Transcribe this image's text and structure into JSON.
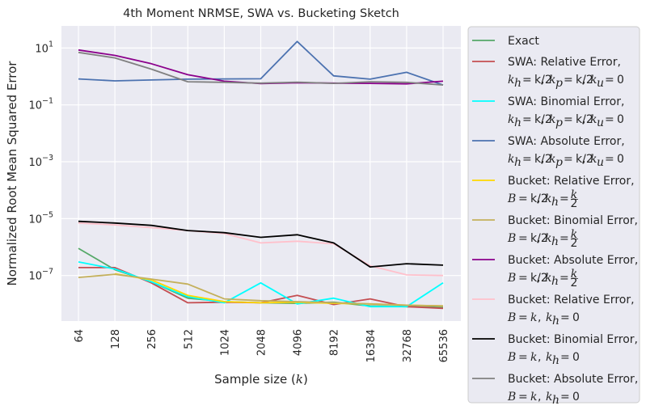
{
  "chart_data": {
    "type": "line",
    "title": "4th Moment NRMSE, SWA vs. Bucketing Sketch",
    "xlabel": "Sample size ($k$)",
    "xlabel_display": {
      "prefix": "Sample size (",
      "var": "k",
      "suffix": ")"
    },
    "ylabel": "Normalized Root Mean Squared Error",
    "y_scale": "log",
    "ylim": [
      2.5e-09,
      60
    ],
    "y_ticks": [
      {
        "value": 1e-07,
        "base": "10",
        "exp": "−7"
      },
      {
        "value": 1e-05,
        "base": "10",
        "exp": "−5"
      },
      {
        "value": 0.001,
        "base": "10",
        "exp": "−3"
      },
      {
        "value": 0.1,
        "base": "10",
        "exp": "−1"
      },
      {
        "value": 10,
        "base": "10",
        "exp": "1"
      }
    ],
    "categories": [
      "64",
      "128",
      "256",
      "512",
      "1024",
      "2048",
      "4096",
      "8192",
      "16384",
      "32768",
      "65536"
    ],
    "grid": true,
    "legend_position": "outside-right",
    "series": [
      {
        "name": "Exact",
        "label_lines": [
          "Exact"
        ],
        "color": "#55a868",
        "values": [
          9e-07,
          1.6e-07,
          6e-08,
          1.6e-08,
          1.2e-08,
          1.1e-08,
          1.05e-08,
          1.15e-08,
          8.5e-09,
          8e-09,
          7.5e-09
        ]
      },
      {
        "name": "SWA: Relative Error, k_h=k/2, k_p=k/2, k_u=0",
        "label_lines": [
          "SWA: Relative Error,",
          "k_h = k/2, k_p = k/2, k_u = 0"
        ],
        "color": "#c44e52",
        "values": [
          1.9e-07,
          1.9e-07,
          5.5e-08,
          1.1e-08,
          1.15e-08,
          1.1e-08,
          2e-08,
          9.5e-09,
          1.5e-08,
          8e-09,
          7e-09
        ]
      },
      {
        "name": "SWA: Binomial Error, k_h=k/2, k_p=k/2, k_u=0",
        "label_lines": [
          "SWA: Binomial Error,",
          "k_h = k/2, k_p = k/2, k_u = 0"
        ],
        "color": "#00ffff",
        "values": [
          3e-07,
          1.7e-07,
          6e-08,
          1.8e-08,
          1.1e-08,
          5.5e-08,
          1e-08,
          1.6e-08,
          8e-09,
          8e-09,
          5.5e-08
        ]
      },
      {
        "name": "SWA: Absolute Error, k_h=k/2, k_p=k/2, k_u=0",
        "label_lines": [
          "SWA: Absolute Error,",
          "k_h = k/2, k_p = k/2, k_u = 0"
        ],
        "color": "#4c72b0",
        "values": [
          0.82,
          0.7,
          0.75,
          0.8,
          0.82,
          0.83,
          17,
          1.05,
          0.8,
          1.4,
          0.5
        ]
      },
      {
        "name": "Bucket: Relative Error, B=k/2, k_h=k/2",
        "label_lines": [
          "Bucket: Relative Error,",
          "B = k/2, k_h = k/2"
        ],
        "color": "#ffd700",
        "values": [
          null,
          1.15e-07,
          7e-08,
          2e-08,
          1.2e-08,
          1.1e-08,
          1.15e-08,
          1.05e-08,
          1e-08,
          9e-09,
          8.5e-09
        ]
      },
      {
        "name": "Bucket: Binomial Error, B=k/2, k_h=k/2",
        "label_lines": [
          "Bucket: Binomial Error,",
          "B = k/2, k_h = k/2"
        ],
        "color": "#c4b05c",
        "values": [
          8.5e-08,
          1.1e-07,
          7.5e-08,
          5e-08,
          1.5e-08,
          1.3e-08,
          1.2e-08,
          1.1e-08,
          1e-08,
          9e-09,
          8.5e-09
        ]
      },
      {
        "name": "Bucket: Absolute Error, B=k/2, k_h=k/2",
        "label_lines": [
          "Bucket: Absolute Error,",
          "B = k/2, k_h = k/2"
        ],
        "color": "#8b008b",
        "values": [
          8.5,
          5.5,
          2.8,
          1.15,
          0.68,
          0.56,
          0.6,
          0.58,
          0.57,
          0.55,
          0.68
        ]
      },
      {
        "name": "Bucket: Relative Error, B=k, k_h=0",
        "label_lines": [
          "Bucket: Relative Error,",
          "B = k, k_h = 0"
        ],
        "color": "#ffc0cb",
        "values": [
          7e-06,
          6e-06,
          4.8e-06,
          3.8e-06,
          3e-06,
          1.4e-06,
          1.6e-06,
          1.3e-06,
          2.2e-07,
          1.05e-07,
          1e-07
        ]
      },
      {
        "name": "Bucket: Binomial Error, B=k, k_h=0",
        "label_lines": [
          "Bucket: Binomial Error,",
          "B = k, k_h = 0"
        ],
        "color": "#000000",
        "values": [
          8e-06,
          7e-06,
          5.8e-06,
          3.8e-06,
          3.2e-06,
          2.2e-06,
          2.7e-06,
          1.4e-06,
          2e-07,
          2.6e-07,
          2.3e-07
        ]
      },
      {
        "name": "Bucket: Absolute Error, B=k, k_h=0",
        "label_lines": [
          "Bucket: Absolute Error,",
          "B = k, k_h = 0"
        ],
        "color": "#808080",
        "values": [
          7,
          4.5,
          1.8,
          0.65,
          0.62,
          0.58,
          0.63,
          0.57,
          0.65,
          0.62,
          0.5
        ]
      }
    ]
  }
}
